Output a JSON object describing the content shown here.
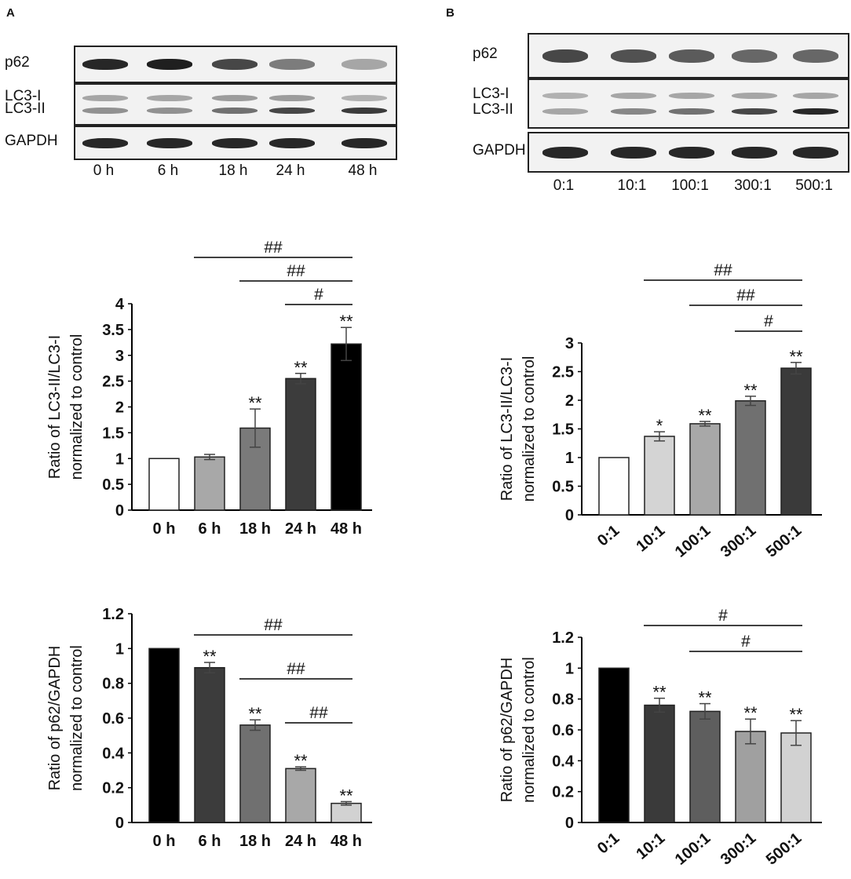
{
  "panels": [
    {
      "letter": "A",
      "blot": {
        "rows": [
          {
            "labels": [
              "p62"
            ],
            "bands": [
              [
                0.95
              ],
              [
                0.98
              ],
              [
                0.8
              ],
              [
                0.55
              ],
              [
                0.35
              ]
            ]
          },
          {
            "labels": [
              "LC3-I",
              "LC3-II"
            ],
            "bands": [
              [
                0.35,
                0.45
              ],
              [
                0.35,
                0.45
              ],
              [
                0.4,
                0.6
              ],
              [
                0.4,
                0.8
              ],
              [
                0.3,
                0.85
              ]
            ]
          },
          {
            "labels": [
              "GAPDH"
            ],
            "bands": [
              [
                0.95
              ],
              [
                0.95
              ],
              [
                0.95
              ],
              [
                0.95
              ],
              [
                0.95
              ]
            ]
          }
        ],
        "lanes": [
          "0 h",
          "6 h",
          "18 h",
          "24 h",
          "48 h"
        ]
      }
    },
    {
      "letter": "B",
      "blot": {
        "rows": [
          {
            "labels": [
              "p62"
            ],
            "bands": [
              [
                0.8
              ],
              [
                0.75
              ],
              [
                0.7
              ],
              [
                0.65
              ],
              [
                0.65
              ]
            ]
          },
          {
            "labels": [
              "LC3-I",
              "LC3-II"
            ],
            "bands": [
              [
                0.3,
                0.35
              ],
              [
                0.35,
                0.5
              ],
              [
                0.35,
                0.6
              ],
              [
                0.35,
                0.8
              ],
              [
                0.35,
                0.95
              ]
            ]
          },
          {
            "labels": [
              "GAPDH"
            ],
            "bands": [
              [
                0.95
              ],
              [
                0.95
              ],
              [
                0.95
              ],
              [
                0.95
              ],
              [
                0.95
              ]
            ]
          }
        ],
        "lanes": [
          "0:1",
          "10:1",
          "100:1",
          "300:1",
          "500:1"
        ]
      }
    }
  ],
  "chart_data": [
    {
      "type": "bar",
      "categories": [
        "0 h",
        "6 h",
        "18 h",
        "24 h",
        "48 h"
      ],
      "values": [
        1.0,
        1.03,
        1.59,
        2.55,
        3.22
      ],
      "errors": [
        0,
        0.05,
        0.37,
        0.1,
        0.32
      ],
      "ylabel_lines": [
        "Ratio of LC3-II/LC3-I",
        "normalized to control"
      ],
      "ylim": [
        0,
        4
      ],
      "yticks": [
        "0",
        "0.5",
        "1",
        "1.5",
        "2",
        "2.5",
        "3",
        "3.5",
        "4"
      ],
      "colors": [
        "#ffffff",
        "#a8a8a8",
        "#7a7a7a",
        "#3c3c3c",
        "#000000"
      ],
      "stars": [
        "",
        "",
        "**",
        "**",
        "**"
      ],
      "comparisons": [
        {
          "from": 1,
          "to": 4,
          "label": "##"
        },
        {
          "from": 2,
          "to": 4,
          "label": "##"
        },
        {
          "from": 3,
          "to": 4,
          "label": "#"
        }
      ],
      "rotated_ticks": false
    },
    {
      "type": "bar",
      "categories": [
        "0 h",
        "6 h",
        "18 h",
        "24 h",
        "48 h"
      ],
      "values": [
        1.0,
        0.89,
        0.56,
        0.31,
        0.11
      ],
      "errors": [
        0,
        0.03,
        0.03,
        0.01,
        0.01
      ],
      "ylabel_lines": [
        "Ratio of p62/GAPDH",
        "normalized to control"
      ],
      "ylim": [
        0,
        1.2
      ],
      "yticks": [
        "0",
        "0.2",
        "0.4",
        "0.6",
        "0.8",
        "1",
        "1.2"
      ],
      "colors": [
        "#000000",
        "#3c3c3c",
        "#707070",
        "#a8a8a8",
        "#d2d2d2"
      ],
      "stars": [
        "",
        "**",
        "**",
        "**",
        "**"
      ],
      "comparisons": [
        {
          "from": 1,
          "to": 4,
          "label": "##"
        },
        {
          "from": 2,
          "to": 4,
          "label": "##"
        },
        {
          "from": 3,
          "to": 4,
          "label": "##"
        }
      ],
      "rotated_ticks": false
    },
    {
      "type": "bar",
      "categories": [
        "0:1",
        "10:1",
        "100:1",
        "300:1",
        "500:1"
      ],
      "values": [
        1.0,
        1.37,
        1.59,
        1.99,
        2.56
      ],
      "errors": [
        0,
        0.08,
        0.04,
        0.08,
        0.1
      ],
      "ylabel_lines": [
        "Ratio of LC3-II/LC3-I",
        "normalized to control"
      ],
      "ylim": [
        0,
        3
      ],
      "yticks": [
        "0",
        "0.5",
        "1",
        "1.5",
        "2",
        "2.5",
        "3"
      ],
      "colors": [
        "#ffffff",
        "#d4d4d4",
        "#a8a8a8",
        "#707070",
        "#3a3a3a"
      ],
      "stars": [
        "",
        "*",
        "**",
        "**",
        "**"
      ],
      "comparisons": [
        {
          "from": 1,
          "to": 4,
          "label": "##"
        },
        {
          "from": 2,
          "to": 4,
          "label": "##"
        },
        {
          "from": 3,
          "to": 4,
          "label": "#"
        }
      ],
      "rotated_ticks": true
    },
    {
      "type": "bar",
      "categories": [
        "0:1",
        "10:1",
        "100:1",
        "300:1",
        "500:1"
      ],
      "values": [
        1.0,
        0.76,
        0.72,
        0.59,
        0.58
      ],
      "errors": [
        0,
        0.045,
        0.05,
        0.08,
        0.08
      ],
      "ylabel_lines": [
        "Ratio of p62/GAPDH",
        "normalized to control"
      ],
      "ylim": [
        0,
        1.2
      ],
      "yticks": [
        "0",
        "0.2",
        "0.4",
        "0.6",
        "0.8",
        "1",
        "1.2"
      ],
      "colors": [
        "#000000",
        "#3a3a3a",
        "#5e5e5e",
        "#a0a0a0",
        "#d2d2d2"
      ],
      "stars": [
        "",
        "**",
        "**",
        "**",
        "**"
      ],
      "comparisons": [
        {
          "from": 1,
          "to": 4,
          "label": "#"
        },
        {
          "from": 2,
          "to": 4,
          "label": "#"
        }
      ],
      "rotated_ticks": true
    }
  ]
}
